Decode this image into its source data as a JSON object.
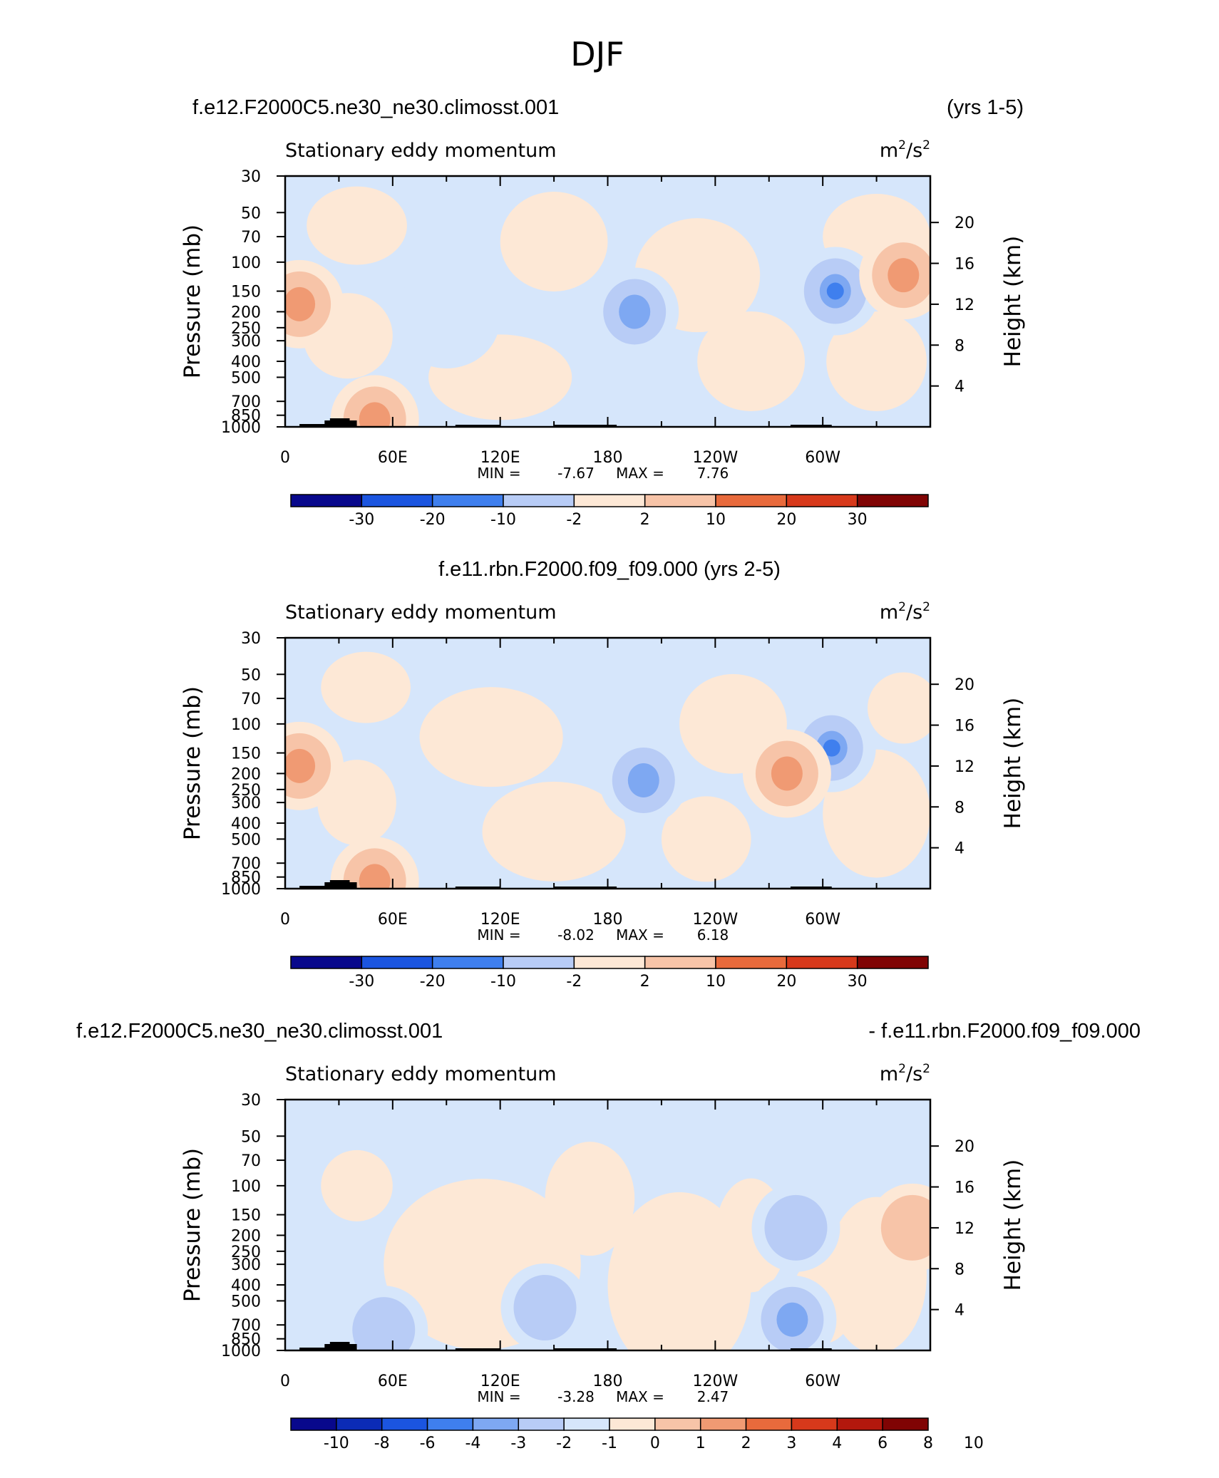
{
  "figure": {
    "title": "DJF"
  },
  "colors": {
    "ramp_8": [
      "#08088c",
      "#0b2bb6",
      "#1b55e0",
      "#3f7fee",
      "#7ea8f2",
      "#b8ccf6",
      "#d6e6fb",
      "#fde8d6",
      "#f7c4a8",
      "#f09a73",
      "#e86a3c",
      "#d7391b",
      "#b3180d",
      "#800404"
    ],
    "c_blue_light": "#d6e6fb",
    "c_blue_mid": "#b8ccf6",
    "c_blue_dark": "#7ea8f2",
    "c_red_light": "#fde8d6",
    "c_red_mid": "#f7c4a8",
    "c_red_dark": "#f09a73",
    "terrain": "#000000"
  },
  "panels": [
    {
      "left_title": "f.e12.F2000C5.ne30_ne30.climosst.001",
      "right_title": "(yrs 1-5)",
      "center_title": "",
      "var_label": "Stationary eddy momentum",
      "units_base": "m",
      "units_mid": "/s",
      "units_exp": "2",
      "y_label": "Pressure (mb)",
      "y2_label": "Height (km)",
      "min_label": "MIN =",
      "min_value": "-7.67",
      "max_label": "MAX =",
      "max_value": "7.76",
      "colorbar_labels": [
        "-30",
        "-20",
        "-10",
        "-2",
        "2",
        "10",
        "20",
        "30"
      ]
    },
    {
      "left_title": "",
      "right_title": "",
      "center_title": "f.e11.rbn.F2000.f09_f09.000 (yrs 2-5)",
      "var_label": "Stationary eddy momentum",
      "units_base": "m",
      "units_mid": "/s",
      "units_exp": "2",
      "y_label": "Pressure (mb)",
      "y2_label": "Height (km)",
      "min_label": "MIN =",
      "min_value": "-8.02",
      "max_label": "MAX =",
      "max_value": "6.18",
      "colorbar_labels": [
        "-30",
        "-20",
        "-10",
        "-2",
        "2",
        "10",
        "20",
        "30"
      ]
    },
    {
      "left_title": "f.e12.F2000C5.ne30_ne30.climosst.001",
      "right_title": "- f.e11.rbn.F2000.f09_f09.000",
      "center_title": "",
      "var_label": "Stationary eddy momentum",
      "units_base": "m",
      "units_mid": "/s",
      "units_exp": "2",
      "y_label": "Pressure (mb)",
      "y2_label": "Height (km)",
      "min_label": "MIN =",
      "min_value": "-3.28",
      "max_label": "MAX =",
      "max_value": "2.47",
      "colorbar_labels": [
        "-10",
        "-8",
        "-6",
        "-4",
        "-3",
        "-2",
        "-1",
        "0",
        "1",
        "2",
        "3",
        "4",
        "6",
        "8",
        "10"
      ]
    }
  ],
  "chart_data": [
    {
      "type": "heatmap",
      "title": "Stationary eddy momentum",
      "units": "m2/s2",
      "xlabel": "",
      "ylabel": "Pressure (mb)",
      "y2label": "Height (km)",
      "x_ticks": [
        "0",
        "60E",
        "120E",
        "180",
        "120W",
        "60W"
      ],
      "x_tick_values": [
        0,
        60,
        120,
        180,
        240,
        300
      ],
      "xlim": [
        0,
        360
      ],
      "y_ticks": [
        "30",
        "50",
        "70",
        "100",
        "150",
        "200",
        "250",
        "300",
        "400",
        "500",
        "700",
        "850",
        "1000"
      ],
      "y_tick_values": [
        30,
        50,
        70,
        100,
        150,
        200,
        250,
        300,
        400,
        500,
        700,
        850,
        1000
      ],
      "ylim": [
        1000,
        30
      ],
      "y2_ticks": [
        "20",
        "16",
        "12",
        "8",
        "4"
      ],
      "y2_tick_values": [
        20,
        16,
        12,
        8,
        4
      ],
      "contour_levels": [
        -30,
        -20,
        -10,
        -2,
        2,
        10,
        20,
        30
      ],
      "min": -7.67,
      "max": 7.76,
      "features": [
        {
          "lon": 8,
          "p": 180,
          "sign": "positive",
          "strength": 2
        },
        {
          "lon": 195,
          "p": 200,
          "sign": "negative",
          "strength": 2
        },
        {
          "lon": 307,
          "p": 150,
          "sign": "negative",
          "strength": 3
        },
        {
          "lon": 345,
          "p": 120,
          "sign": "positive",
          "strength": 2
        },
        {
          "lon": 50,
          "p": 900,
          "sign": "positive",
          "strength": 2
        }
      ]
    },
    {
      "type": "heatmap",
      "title": "Stationary eddy momentum",
      "units": "m2/s2",
      "xlabel": "",
      "ylabel": "Pressure (mb)",
      "y2label": "Height (km)",
      "x_ticks": [
        "0",
        "60E",
        "120E",
        "180",
        "120W",
        "60W"
      ],
      "x_tick_values": [
        0,
        60,
        120,
        180,
        240,
        300
      ],
      "xlim": [
        0,
        360
      ],
      "y_ticks": [
        "30",
        "50",
        "70",
        "100",
        "150",
        "200",
        "250",
        "300",
        "400",
        "500",
        "700",
        "850",
        "1000"
      ],
      "y_tick_values": [
        30,
        50,
        70,
        100,
        150,
        200,
        250,
        300,
        400,
        500,
        700,
        850,
        1000
      ],
      "ylim": [
        1000,
        30
      ],
      "y2_ticks": [
        "20",
        "16",
        "12",
        "8",
        "4"
      ],
      "y2_tick_values": [
        20,
        16,
        12,
        8,
        4
      ],
      "contour_levels": [
        -30,
        -20,
        -10,
        -2,
        2,
        10,
        20,
        30
      ],
      "min": -8.02,
      "max": 6.18,
      "features": [
        {
          "lon": 8,
          "p": 180,
          "sign": "positive",
          "strength": 2
        },
        {
          "lon": 200,
          "p": 220,
          "sign": "negative",
          "strength": 2
        },
        {
          "lon": 305,
          "p": 140,
          "sign": "negative",
          "strength": 3
        },
        {
          "lon": 280,
          "p": 200,
          "sign": "positive",
          "strength": 2
        },
        {
          "lon": 50,
          "p": 900,
          "sign": "positive",
          "strength": 2
        }
      ]
    },
    {
      "type": "heatmap",
      "title": "Stationary eddy momentum",
      "units": "m2/s2",
      "xlabel": "",
      "ylabel": "Pressure (mb)",
      "y2label": "Height (km)",
      "x_ticks": [
        "0",
        "60E",
        "120E",
        "180",
        "120W",
        "60W"
      ],
      "x_tick_values": [
        0,
        60,
        120,
        180,
        240,
        300
      ],
      "xlim": [
        0,
        360
      ],
      "y_ticks": [
        "30",
        "50",
        "70",
        "100",
        "150",
        "200",
        "250",
        "300",
        "400",
        "500",
        "700",
        "850",
        "1000"
      ],
      "y_tick_values": [
        30,
        50,
        70,
        100,
        150,
        200,
        250,
        300,
        400,
        500,
        700,
        850,
        1000
      ],
      "ylim": [
        1000,
        30
      ],
      "y2_ticks": [
        "20",
        "16",
        "12",
        "8",
        "4"
      ],
      "y2_tick_values": [
        20,
        16,
        12,
        8,
        4
      ],
      "contour_levels": [
        -10,
        -8,
        -6,
        -4,
        -3,
        -2,
        -1,
        0,
        1,
        2,
        3,
        4,
        6,
        8,
        10
      ],
      "min": -3.28,
      "max": 2.47,
      "features": [
        {
          "lon": 285,
          "p": 180,
          "sign": "negative",
          "strength": 1
        },
        {
          "lon": 283,
          "p": 650,
          "sign": "negative",
          "strength": 2
        },
        {
          "lon": 55,
          "p": 750,
          "sign": "negative",
          "strength": 1
        },
        {
          "lon": 145,
          "p": 550,
          "sign": "negative",
          "strength": 1
        },
        {
          "lon": 350,
          "p": 180,
          "sign": "positive",
          "strength": 1
        }
      ]
    }
  ]
}
